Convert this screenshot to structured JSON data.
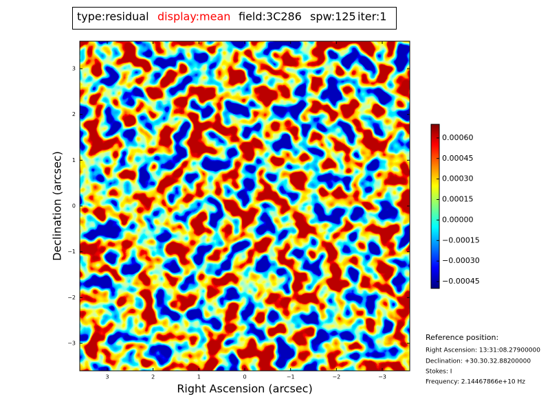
{
  "chart_data": {
    "type": "heatmap",
    "title_parts": [
      {
        "text": "type:residual",
        "color": "#000000"
      },
      {
        "text": "display:mean",
        "color": "#ff0000"
      },
      {
        "text": "field:3C286",
        "color": "#000000"
      },
      {
        "text": "spw:125",
        "color": "#000000"
      },
      {
        "text": "iter:1",
        "color": "#000000"
      }
    ],
    "xlabel": "Right Ascension (arcsec)",
    "ylabel": "Declination (arcsec)",
    "xlim": [
      3.6,
      -3.6
    ],
    "xticks": [
      3,
      2,
      1,
      0,
      {
        "value": -1,
        "label": "−1"
      },
      {
        "value": -2,
        "label": "−2"
      },
      {
        "value": -3,
        "label": "−3"
      }
    ],
    "ylim": [
      -3.6,
      3.6
    ],
    "yticks": [
      {
        "value": -3,
        "label": "−3"
      },
      {
        "value": -2,
        "label": "−2"
      },
      {
        "value": -1,
        "label": "−1"
      },
      0,
      1,
      2,
      3
    ],
    "colormap": "jet",
    "clim": [
      -0.0005,
      0.0007
    ],
    "cticks": [
      {
        "value": -0.00045,
        "label": "−0.00045"
      },
      {
        "value": -0.0003,
        "label": "−0.00030"
      },
      {
        "value": -0.00015,
        "label": "−0.00015"
      },
      {
        "value": 0,
        "label": "0.00000"
      },
      {
        "value": 0.00015,
        "label": "0.00015"
      },
      {
        "value": 0.0003,
        "label": "0.00030"
      },
      {
        "value": 0.00045,
        "label": "0.00045"
      },
      {
        "value": 0.0006,
        "label": "0.00060"
      }
    ],
    "annotations": [
      "Reference position:",
      "Right Ascension: 13:31:08.27900000",
      "Declination: +30.30.32.88200000",
      "Stokes: I",
      "Frequency: 2.14467866e+10 Hz"
    ]
  }
}
